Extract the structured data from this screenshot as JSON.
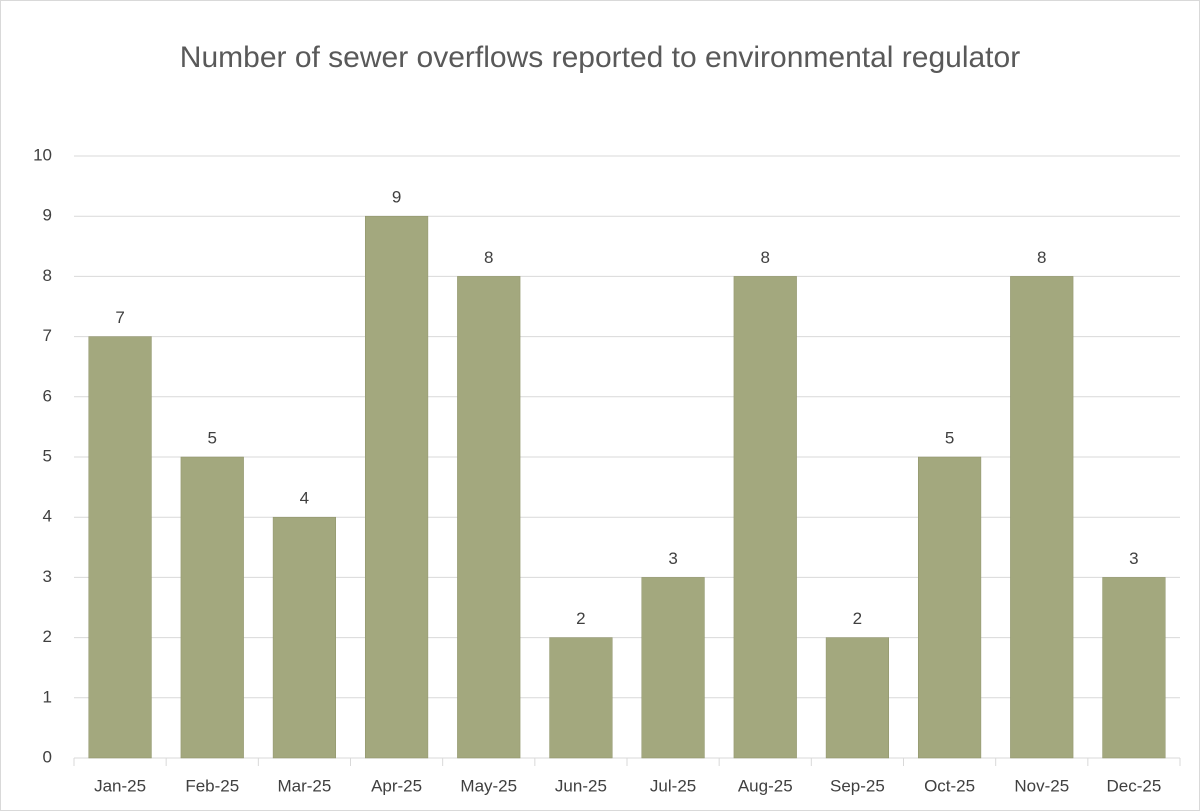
{
  "chart_data": {
    "type": "bar",
    "title": "Number of sewer overflows reported to environmental regulator",
    "categories": [
      "Jan-25",
      "Feb-25",
      "Mar-25",
      "Apr-25",
      "May-25",
      "Jun-25",
      "Jul-25",
      "Aug-25",
      "Sep-25",
      "Oct-25",
      "Nov-25",
      "Dec-25"
    ],
    "values": [
      7,
      5,
      4,
      9,
      8,
      2,
      3,
      8,
      2,
      5,
      8,
      3
    ],
    "color": "#a3a87e",
    "ylim": [
      0,
      10
    ],
    "yticks": [
      0,
      1,
      2,
      3,
      4,
      5,
      6,
      7,
      8,
      9,
      10
    ],
    "grid": true
  }
}
